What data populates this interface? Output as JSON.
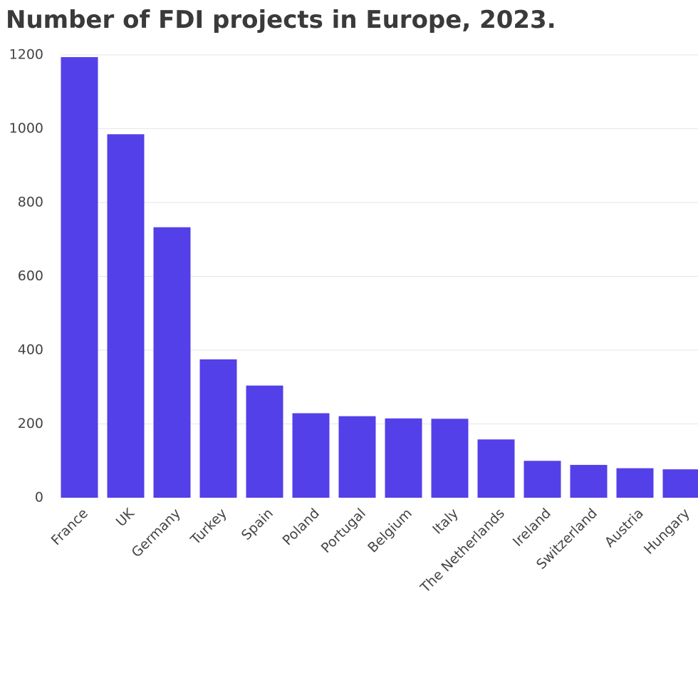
{
  "chart_data": {
    "type": "bar",
    "title": "Number of FDI projects in Europe, 2023.",
    "xlabel": "",
    "ylabel": "",
    "ylim": [
      0,
      1200
    ],
    "yticks": [
      "0",
      "200",
      "400",
      "600",
      "800",
      "1000",
      "1200"
    ],
    "grid": true,
    "categories": [
      "France",
      "UK",
      "Germany",
      "Turkey",
      "Spain",
      "Poland",
      "Portugal",
      "Belgium",
      "Italy",
      "The Netherlands",
      "Ireland",
      "Switzerland",
      "Austria",
      "Hungary"
    ],
    "values": [
      1194,
      985,
      733,
      375,
      304,
      229,
      221,
      215,
      214,
      158,
      100,
      89,
      80,
      77
    ],
    "bar_color": "#5340e8",
    "grid_color": "#e6e6e6",
    "label_color": "#444444"
  }
}
